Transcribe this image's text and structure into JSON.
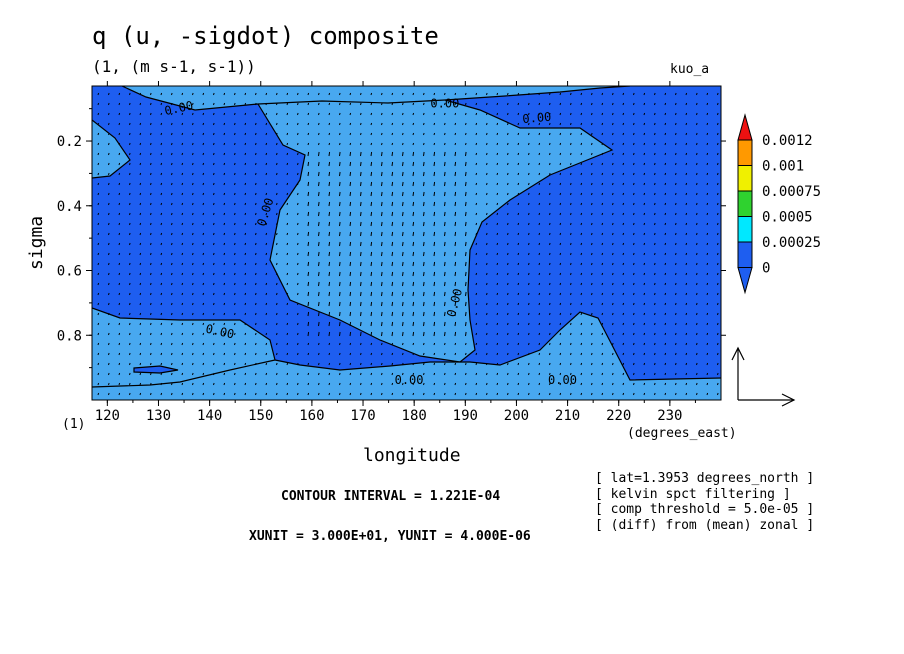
{
  "header": {
    "title": "q (u, -sigdot) composite",
    "subtitle": "(1, (m s-1, s-1))",
    "tag": "kuo_a"
  },
  "chart_data": {
    "type": "contour",
    "xlabel": "longitude",
    "ylabel": "sigma",
    "x_units": "(degrees_east)",
    "y_units": "(1)",
    "xlim": [
      117,
      240
    ],
    "ylim": [
      1.0,
      0.03
    ],
    "xticks": [
      "120",
      "130",
      "140",
      "150",
      "160",
      "170",
      "180",
      "190",
      "200",
      "210",
      "220",
      "230"
    ],
    "yticks": [
      "0.2",
      "0.4",
      "0.6",
      "0.8"
    ],
    "contour_interval": "CONTOUR INTERVAL = 1.221E-04",
    "vector_units": "XUNIT = 3.000E+01, YUNIT = 4.000E-06",
    "legend_levels": [
      "0",
      "0.00025",
      "0.0005",
      "0.00075",
      "0.001",
      "0.0012"
    ],
    "level_colors": [
      "#1e5ef0",
      "#00e8ff",
      "#2fd22f",
      "#f0f000",
      "#ff9900",
      "#ee1111"
    ],
    "fill_colors": {
      "low": "#1e5ef0",
      "mid": "#48a8f0"
    },
    "contour_labels": [
      {
        "text": "0.00",
        "lon": 134,
        "sigma": 0.1,
        "angle": -12
      },
      {
        "text": "0.00",
        "lon": 186,
        "sigma": 0.085,
        "angle": 0
      },
      {
        "text": "0.00",
        "lon": 204,
        "sigma": 0.13,
        "angle": -5
      },
      {
        "text": "0.00",
        "lon": 151,
        "sigma": 0.42,
        "angle": -72
      },
      {
        "text": "0.00",
        "lon": 188,
        "sigma": 0.7,
        "angle": -75
      },
      {
        "text": "0.00",
        "lon": 142,
        "sigma": 0.79,
        "angle": 12
      },
      {
        "text": "0.00",
        "lon": 179,
        "sigma": 0.94,
        "angle": 0
      },
      {
        "text": "0.00",
        "lon": 209,
        "sigma": 0.94,
        "angle": 0
      }
    ],
    "annotations": [
      "[ lat=1.3953 degrees_north ]",
      "[ kelvin spct filtering ]",
      "[ comp threshold = 5.0e-05 ]",
      "[ (diff) from (mean) zonal ]"
    ]
  }
}
